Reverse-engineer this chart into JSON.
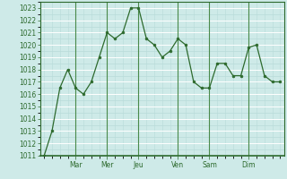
{
  "y_values": [
    1011,
    1013,
    1016.5,
    1018,
    1016.5,
    1016,
    1017,
    1019,
    1021,
    1020.5,
    1021,
    1023,
    1023,
    1020.5,
    1020,
    1019,
    1019.5,
    1020.5,
    1020,
    1017,
    1016.5,
    1016.5,
    1018.5,
    1018.5,
    1017.5,
    1017.5,
    1019.8,
    1020,
    1017.5,
    1017,
    1017
  ],
  "day_positions": [
    4,
    8,
    12,
    17,
    21,
    26
  ],
  "day_labels": [
    "Mar",
    "Mer",
    "Jeu",
    "Ven",
    "Sam",
    "Dim"
  ],
  "ylim_min": 1011,
  "ylim_max": 1023.5,
  "yticks": [
    1011,
    1012,
    1013,
    1014,
    1015,
    1016,
    1017,
    1018,
    1019,
    1020,
    1021,
    1022,
    1023
  ],
  "line_color": "#2d6a2d",
  "marker_color": "#2d6a2d",
  "bg_color": "#ceeae8",
  "grid_major_color": "#ffffff",
  "grid_minor_color": "#b8dbd9",
  "spine_color": "#2d6a2d",
  "tick_label_color": "#2d6a2d",
  "vline_color": "#4a8a4a"
}
